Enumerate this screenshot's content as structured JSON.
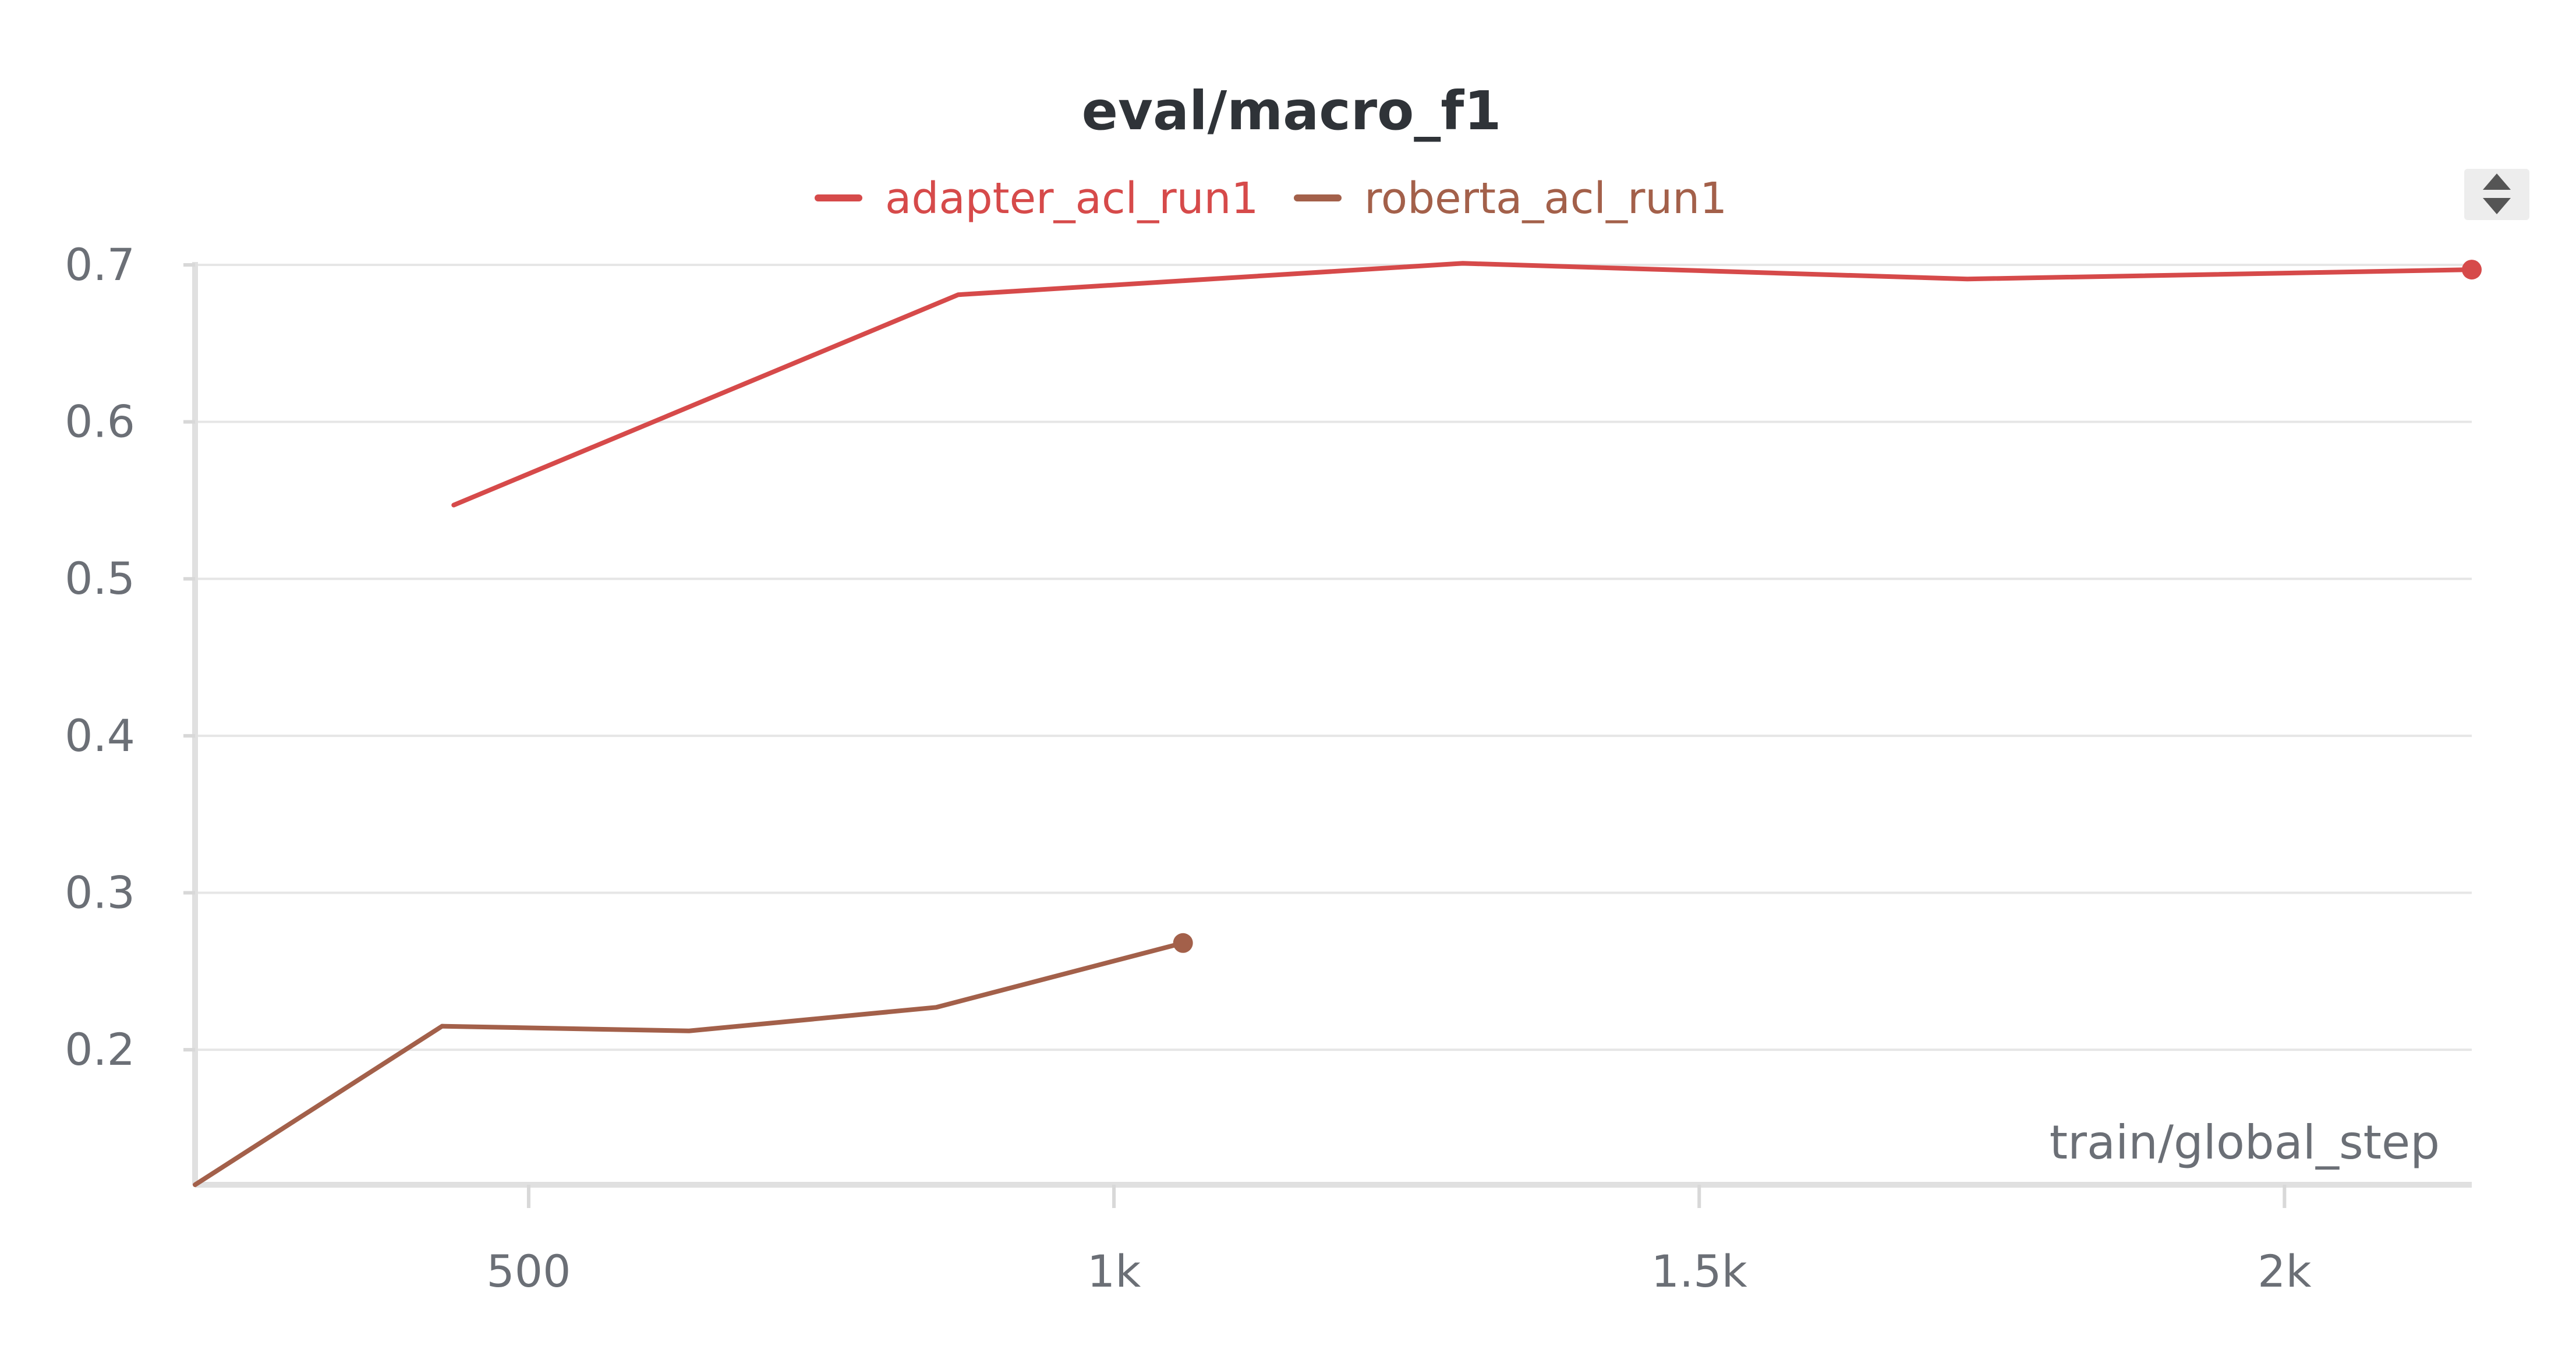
{
  "chart_data": {
    "type": "line",
    "title": "eval/macro_f1",
    "xlabel": "train/global_step",
    "ylabel": "",
    "xlim": [
      215,
      2160
    ],
    "ylim": [
      0.114,
      0.7
    ],
    "x_ticks": [
      {
        "value": 500,
        "label": "500"
      },
      {
        "value": 1000,
        "label": "1k"
      },
      {
        "value": 1500,
        "label": "1.5k"
      },
      {
        "value": 2000,
        "label": "2k"
      }
    ],
    "y_ticks": [
      {
        "value": 0.2,
        "label": "0.2"
      },
      {
        "value": 0.3,
        "label": "0.3"
      },
      {
        "value": 0.4,
        "label": "0.4"
      },
      {
        "value": 0.5,
        "label": "0.5"
      },
      {
        "value": 0.6,
        "label": "0.6"
      },
      {
        "value": 0.7,
        "label": "0.7"
      }
    ],
    "grid": true,
    "legend_position": "top-center",
    "series": [
      {
        "name": "adapter_acl_run1",
        "color": "#d64a4a",
        "x": [
          436,
          867,
          1298,
          1729,
          2160
        ],
        "y": [
          0.547,
          0.681,
          0.701,
          0.691,
          0.697
        ]
      },
      {
        "name": "roberta_acl_run1",
        "color": "#a3604a",
        "x": [
          215,
          426,
          637,
          848,
          1059
        ],
        "y": [
          0.114,
          0.215,
          0.212,
          0.227,
          0.268
        ]
      }
    ]
  },
  "controls": {
    "sort_icon": "sort-up-down-icon",
    "sort_icon_color": "#555555"
  }
}
